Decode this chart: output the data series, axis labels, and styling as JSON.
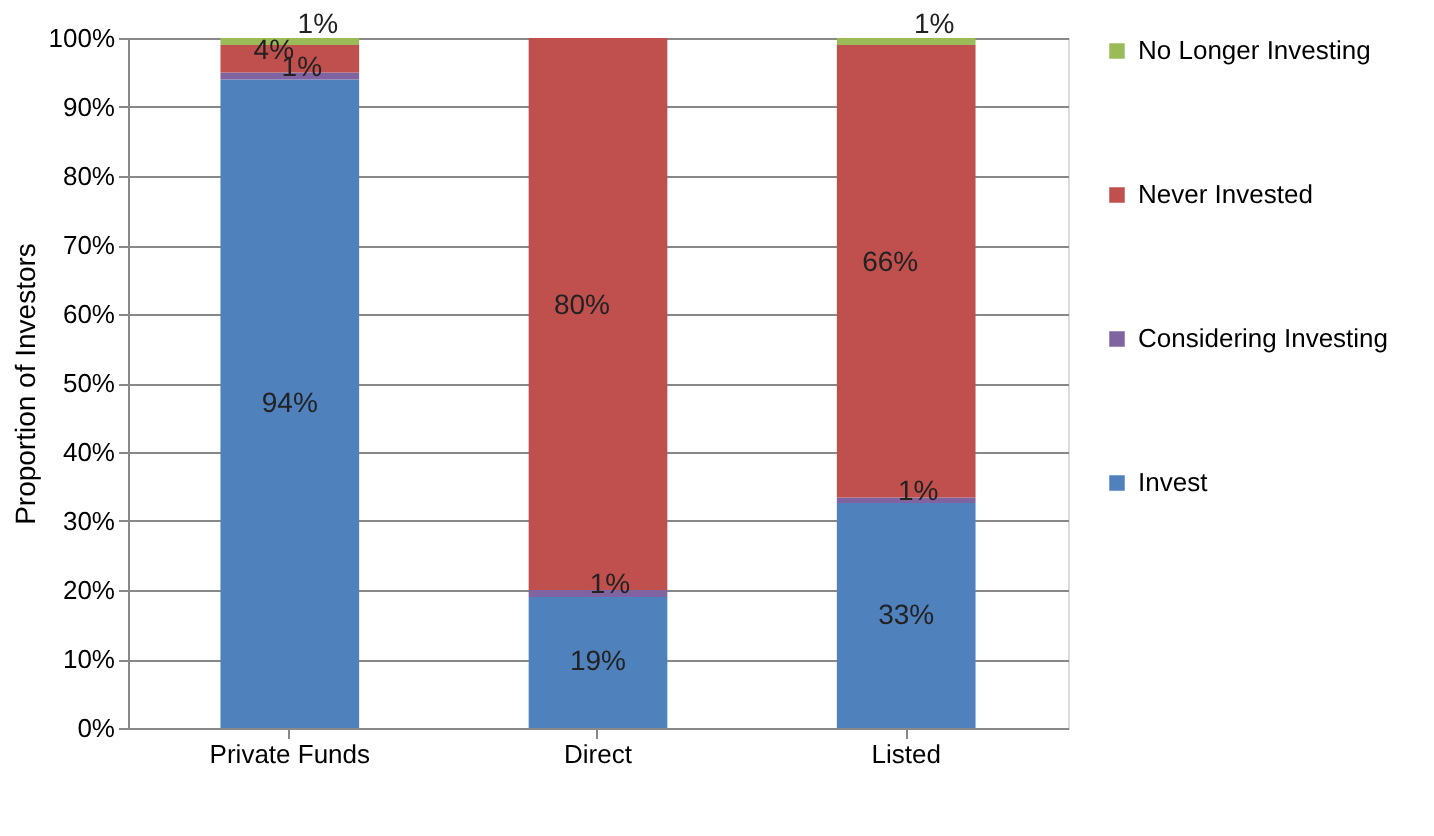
{
  "chart_data": {
    "type": "bar",
    "stacked": true,
    "ylabel": "Proportion of Investors",
    "categories": [
      "Private Funds",
      "Direct",
      "Listed"
    ],
    "series": [
      {
        "name": "Invest",
        "color": "#4f81bd",
        "values": [
          94,
          19,
          32.6
        ],
        "value_labels": [
          "94%",
          "19%",
          "33%"
        ]
      },
      {
        "name": "Considering Investing",
        "color": "#8064a2",
        "values": [
          1,
          1,
          0.8
        ],
        "value_labels": [
          "1%",
          "1%",
          "1%"
        ]
      },
      {
        "name": "Never Invested",
        "color": "#c0504d",
        "values": [
          4,
          80,
          65.6
        ],
        "value_labels": [
          "4%",
          "80%",
          "66%"
        ]
      },
      {
        "name": "No Longer Investing",
        "color": "#9bbb59",
        "values": [
          1,
          0,
          1.0
        ],
        "value_labels": [
          "1%",
          null,
          "1%"
        ]
      }
    ],
    "ylim": [
      0,
      100
    ],
    "yticks": [
      {
        "value": 0,
        "label": "0%"
      },
      {
        "value": 10,
        "label": "10%"
      },
      {
        "value": 20,
        "label": "20%"
      },
      {
        "value": 30,
        "label": "30%"
      },
      {
        "value": 40,
        "label": "40%"
      },
      {
        "value": 50,
        "label": "50%"
      },
      {
        "value": 60,
        "label": "60%"
      },
      {
        "value": 70,
        "label": "70%"
      },
      {
        "value": 80,
        "label": "80%"
      },
      {
        "value": 90,
        "label": "90%"
      },
      {
        "value": 100,
        "label": "100%"
      }
    ],
    "grid": "y",
    "legend": "right"
  }
}
